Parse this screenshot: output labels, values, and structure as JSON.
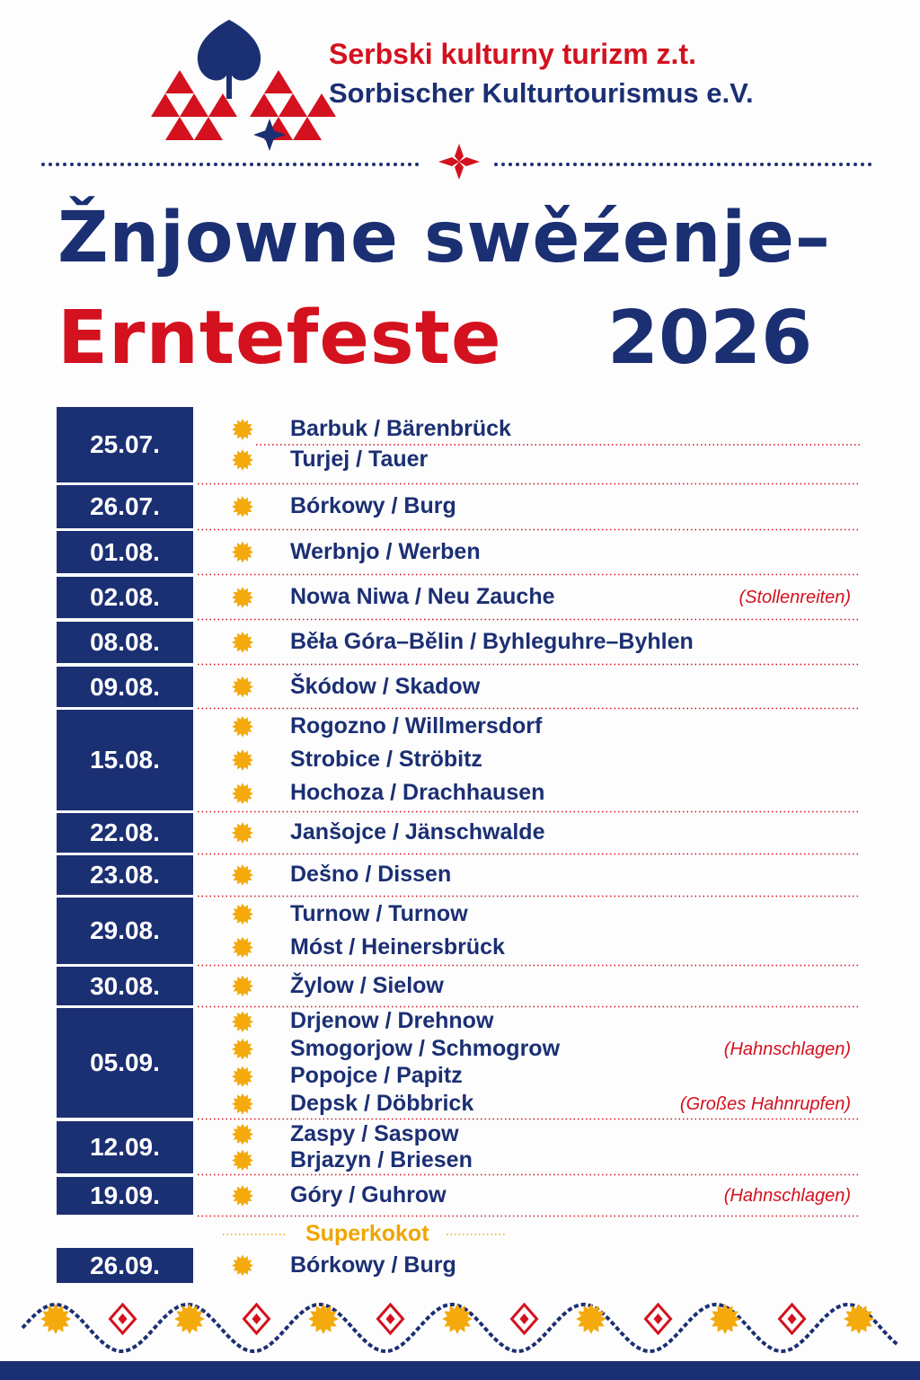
{
  "header": {
    "line1": "Serbski kulturny turizm z.t.",
    "line2": "Sorbischer Kulturtourismus e.V."
  },
  "title": {
    "line1": "Žnjowne swěźenje–",
    "line2_red": "Erntefeste",
    "line2_year": "2026"
  },
  "schedule": [
    {
      "date": "25.07.",
      "places": [
        {
          "name": "Barbuk / Bärenbrück"
        },
        {
          "name": "Turjej / Tauer"
        }
      ]
    },
    {
      "date": "26.07.",
      "places": [
        {
          "name": "Bórkowy / Burg"
        }
      ]
    },
    {
      "date": "01.08.",
      "places": [
        {
          "name": "Werbnjo / Werben"
        }
      ]
    },
    {
      "date": "02.08.",
      "places": [
        {
          "name": "Nowa Niwa / Neu Zauche",
          "note": "(Stollenreiten)"
        }
      ]
    },
    {
      "date": "08.08.",
      "places": [
        {
          "name": "Běła Góra–Bělin / Byhleguhre–Byhlen"
        }
      ]
    },
    {
      "date": "09.08.",
      "places": [
        {
          "name": "Škódow / Skadow"
        }
      ]
    },
    {
      "date": "15.08.",
      "places": [
        {
          "name": "Rogozno / Willmersdorf"
        },
        {
          "name": "Strobice / Ströbitz"
        },
        {
          "name": "Hochoza / Drachhausen"
        }
      ]
    },
    {
      "date": "22.08.",
      "places": [
        {
          "name": "Janšojce / Jänschwalde"
        }
      ]
    },
    {
      "date": "23.08.",
      "places": [
        {
          "name": "Dešno / Dissen"
        }
      ]
    },
    {
      "date": "29.08.",
      "places": [
        {
          "name": "Turnow / Turnow"
        },
        {
          "name": "Móst / Heinersbrück"
        }
      ]
    },
    {
      "date": "30.08.",
      "places": [
        {
          "name": "Žylow / Sielow"
        }
      ]
    },
    {
      "date": "05.09.",
      "places": [
        {
          "name": "Drjenow / Drehnow"
        },
        {
          "name": "Smogorjow / Schmogrow",
          "note": "(Hahnschlagen)"
        },
        {
          "name": "Popojce / Papitz"
        },
        {
          "name": "Depsk / Döbbrick",
          "note": "(Großes Hahnrupfen)"
        }
      ]
    },
    {
      "date": "12.09.",
      "places": [
        {
          "name": "Zaspy / Saspow"
        },
        {
          "name": "Brjazyn / Briesen"
        }
      ]
    },
    {
      "date": "19.09.",
      "places": [
        {
          "name": "Góry / Guhrow",
          "note": "(Hahnschlagen)"
        }
      ]
    }
  ],
  "special": {
    "label": "Superkokot",
    "date": "26.09.",
    "places": [
      {
        "name": "Bórkowy / Burg"
      }
    ]
  }
}
